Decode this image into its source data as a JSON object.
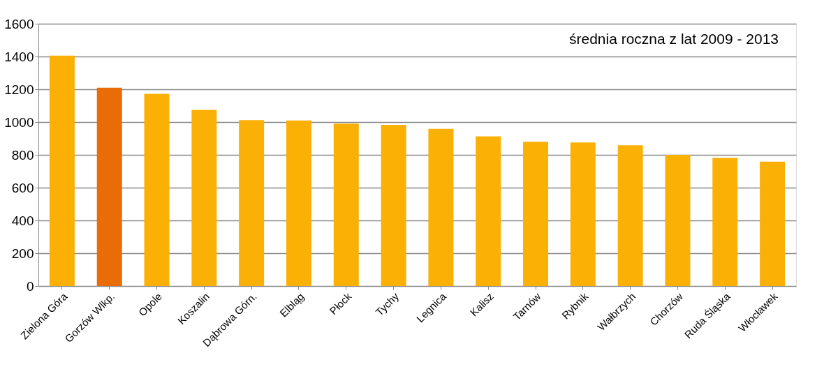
{
  "chart_data": {
    "type": "bar",
    "categories": [
      "Zielona Góra",
      "Gorzów Wlkp.",
      "Opole",
      "Koszalin",
      "Dąbrowa Górn.",
      "Elbląg",
      "Płock",
      "Tychy",
      "Legnica",
      "Kalisz",
      "Tarnów",
      "Rybnik",
      "Wałbrzych",
      "Chorzów",
      "Ruda Śląska",
      "Włocławek"
    ],
    "values": [
      1405,
      1210,
      1172,
      1075,
      1012,
      1010,
      990,
      983,
      958,
      913,
      880,
      876,
      858,
      800,
      782,
      758
    ],
    "colors": [
      "#fab005",
      "#e96c06",
      "#fab005",
      "#fab005",
      "#fab005",
      "#fab005",
      "#fab005",
      "#fab005",
      "#fab005",
      "#fab005",
      "#fab005",
      "#fab005",
      "#fab005",
      "#fab005",
      "#fab005",
      "#fab005"
    ],
    "ylim": [
      0,
      1600
    ],
    "yticks": [
      0,
      200,
      400,
      600,
      800,
      1000,
      1200,
      1400,
      1600
    ],
    "grid": "y",
    "annotations": [
      "średnia roczna z lat 2009 - 2013"
    ]
  }
}
